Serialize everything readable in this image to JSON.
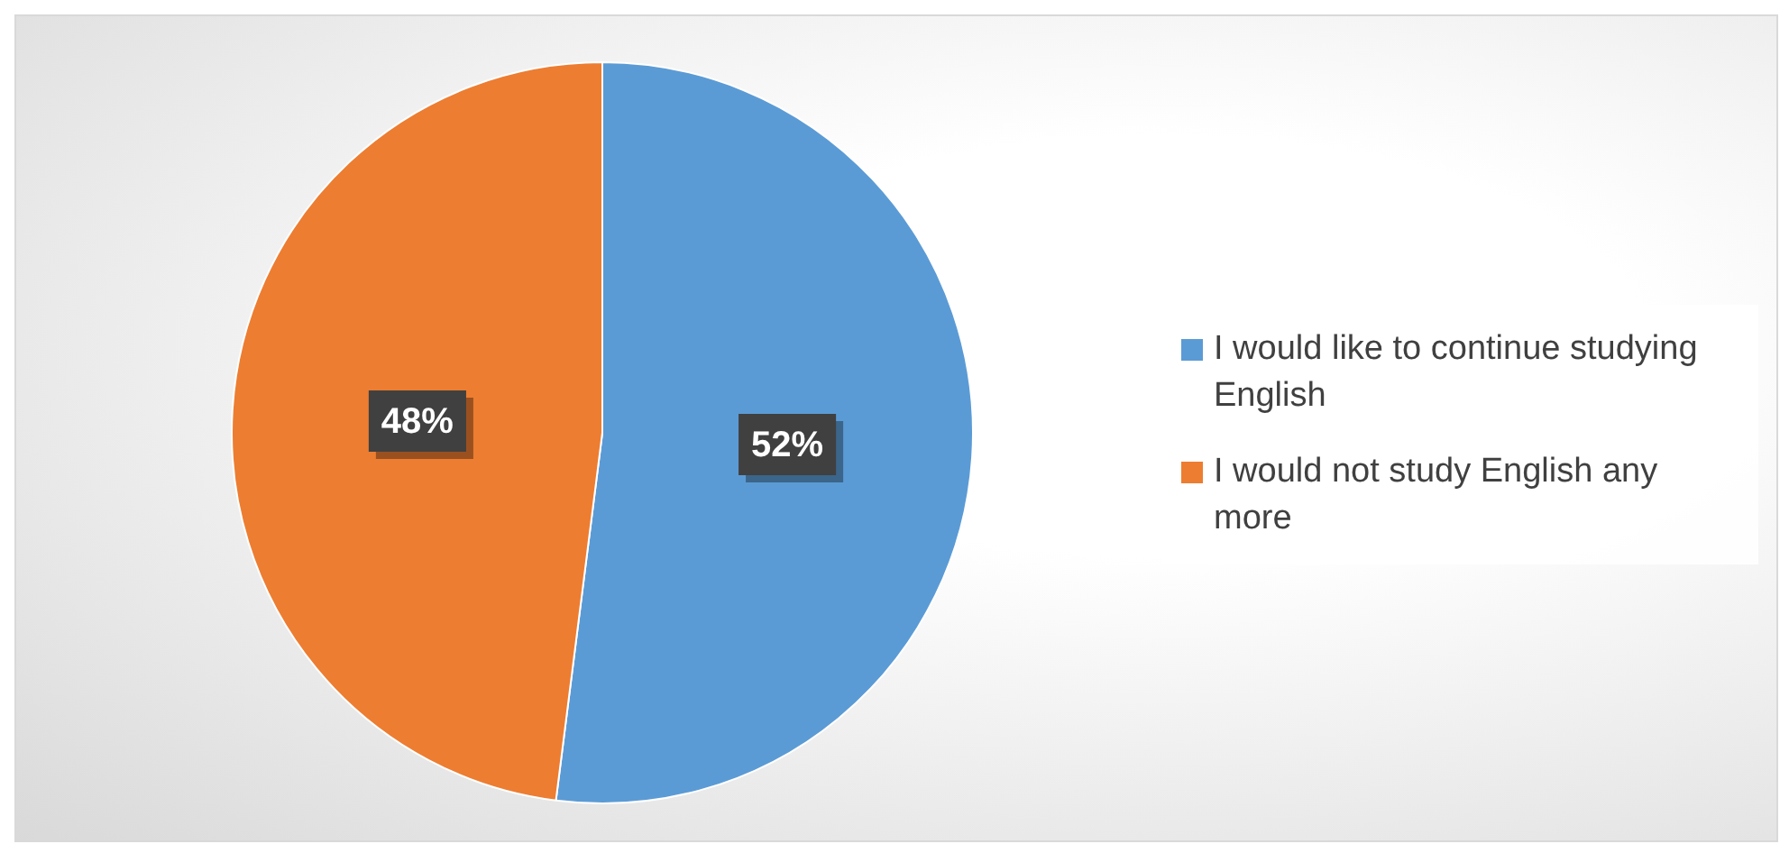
{
  "chart_data": {
    "type": "pie",
    "categories": [
      "I would like to continue studying English",
      "I would not study English any more"
    ],
    "values": [
      52,
      48
    ],
    "colors": [
      "#5b9bd5",
      "#ed7d31"
    ],
    "value_labels": [
      "52%",
      "48%"
    ],
    "legend": "right"
  }
}
